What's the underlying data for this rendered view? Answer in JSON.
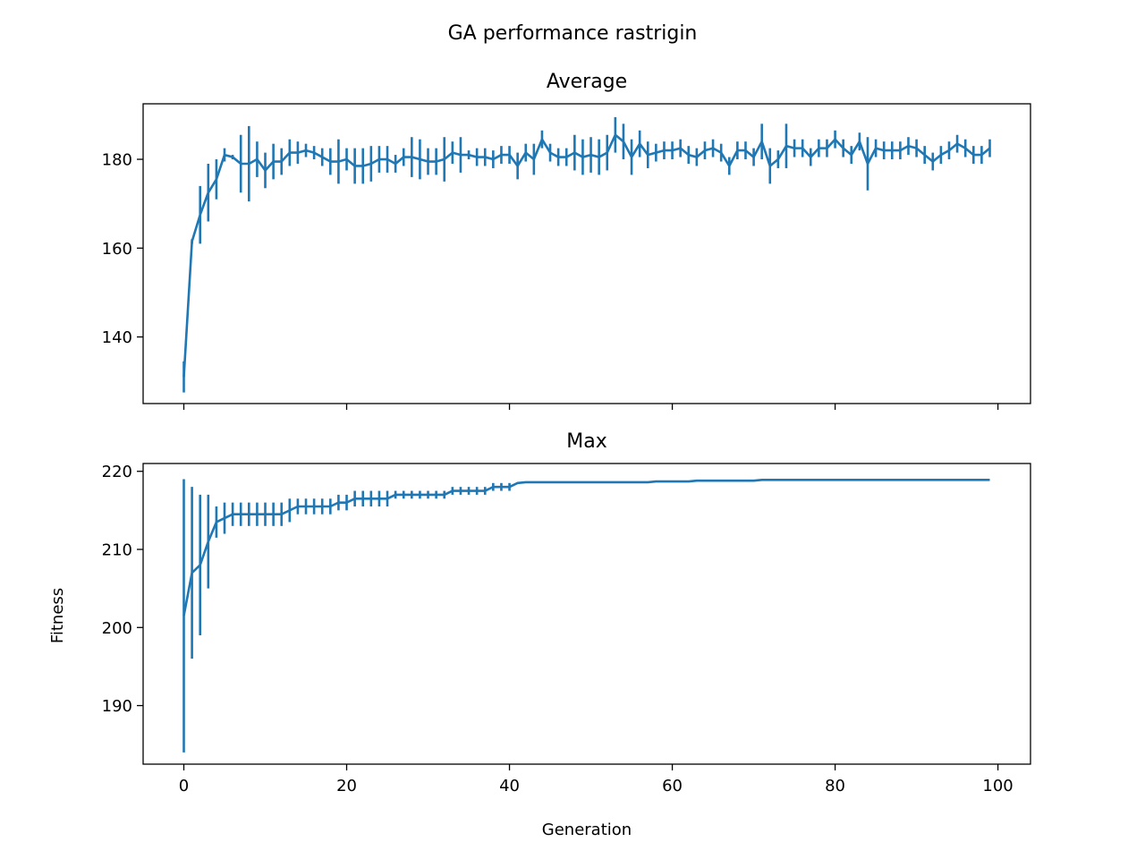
{
  "chart_data": {
    "type": "line",
    "title": "GA performance rastrigin",
    "xlabel": "Generation",
    "ylabel": "Fitness",
    "color": "#1f77b4",
    "xlim": [
      -5,
      104
    ],
    "xticks": [
      0,
      20,
      40,
      60,
      80,
      100
    ],
    "x": [
      0,
      1,
      2,
      3,
      4,
      5,
      6,
      7,
      8,
      9,
      10,
      11,
      12,
      13,
      14,
      15,
      16,
      17,
      18,
      19,
      20,
      21,
      22,
      23,
      24,
      25,
      26,
      27,
      28,
      29,
      30,
      31,
      32,
      33,
      34,
      35,
      36,
      37,
      38,
      39,
      40,
      41,
      42,
      43,
      44,
      45,
      46,
      47,
      48,
      49,
      50,
      51,
      52,
      53,
      54,
      55,
      56,
      57,
      58,
      59,
      60,
      61,
      62,
      63,
      64,
      65,
      66,
      67,
      68,
      69,
      70,
      71,
      72,
      73,
      74,
      75,
      76,
      77,
      78,
      79,
      80,
      81,
      82,
      83,
      84,
      85,
      86,
      87,
      88,
      89,
      90,
      91,
      92,
      93,
      94,
      95,
      96,
      97,
      98,
      99
    ],
    "panels": [
      {
        "title": "Average",
        "ylim": [
          125,
          192.5
        ],
        "yticks": [
          140,
          160,
          180
        ],
        "values": [
          131,
          161.5,
          167.5,
          172.5,
          175.5,
          181,
          180.5,
          179,
          179,
          180,
          177.5,
          179.5,
          179.5,
          181.5,
          181.5,
          182,
          181.5,
          180.5,
          179.5,
          179.5,
          180,
          178.5,
          178.5,
          179,
          180,
          180,
          179,
          180.5,
          180.5,
          180,
          179.5,
          179.5,
          180,
          181.5,
          181,
          181,
          180.5,
          180.5,
          180,
          181,
          181,
          178.5,
          181.5,
          180,
          184.5,
          181.5,
          180.5,
          180.5,
          181.5,
          180.5,
          181,
          180.5,
          181.5,
          185.5,
          184,
          180.5,
          183.5,
          181,
          181.5,
          182,
          182,
          182.5,
          181,
          180.5,
          182,
          182.5,
          181.5,
          178.5,
          182,
          182,
          180.5,
          184,
          178.5,
          180,
          183,
          182.5,
          182.5,
          180.5,
          182.5,
          182.5,
          184.5,
          182.5,
          181,
          184,
          179,
          182.5,
          182,
          182,
          182,
          183,
          182.5,
          181,
          179.5,
          181,
          182,
          183.5,
          182.5,
          181,
          181,
          182.5
        ],
        "errors": [
          3.5,
          0.5,
          6.5,
          6.5,
          4.5,
          1.5,
          0.5,
          6.5,
          8.5,
          4,
          4,
          4,
          3,
          3,
          2.5,
          1.5,
          1.5,
          2,
          3,
          5,
          2.5,
          4,
          4,
          4,
          3,
          3,
          2,
          2,
          4.5,
          4.5,
          3,
          3,
          5,
          2.5,
          4,
          1,
          2,
          2,
          2,
          2,
          2,
          3,
          2,
          3.5,
          2,
          2,
          2,
          2,
          4,
          4,
          4,
          4,
          4,
          4,
          4,
          4,
          3,
          3,
          2,
          2,
          2,
          2,
          2,
          2,
          2,
          2,
          2,
          2,
          2,
          2,
          2,
          4,
          4,
          2,
          5,
          2,
          2,
          2,
          2,
          2,
          2,
          2,
          2,
          2,
          6,
          2,
          2,
          2,
          2,
          2,
          2,
          2,
          2,
          2,
          2,
          2,
          2,
          2,
          2,
          2
        ]
      },
      {
        "title": "Max",
        "ylim": [
          182.5,
          221
        ],
        "yticks": [
          190,
          200,
          210,
          220
        ],
        "values": [
          201.5,
          207,
          208,
          211,
          213.5,
          214,
          214.5,
          214.5,
          214.5,
          214.5,
          214.5,
          214.5,
          214.5,
          215,
          215.5,
          215.5,
          215.5,
          215.5,
          215.5,
          216,
          216,
          216.5,
          216.5,
          216.5,
          216.5,
          216.5,
          217,
          217,
          217,
          217,
          217,
          217,
          217,
          217.5,
          217.5,
          217.5,
          217.5,
          217.5,
          218,
          218,
          218,
          218.5,
          218.6,
          218.6,
          218.6,
          218.6,
          218.6,
          218.6,
          218.6,
          218.6,
          218.6,
          218.6,
          218.6,
          218.6,
          218.6,
          218.6,
          218.6,
          218.6,
          218.7,
          218.7,
          218.7,
          218.7,
          218.7,
          218.8,
          218.8,
          218.8,
          218.8,
          218.8,
          218.8,
          218.8,
          218.8,
          218.9,
          218.9,
          218.9,
          218.9,
          218.9,
          218.9,
          218.9,
          218.9,
          218.9,
          218.9,
          218.9,
          218.9,
          218.9,
          218.9,
          218.9,
          218.9,
          218.9,
          218.9,
          218.9,
          218.9,
          218.9,
          218.9,
          218.9,
          218.9,
          218.9,
          218.9,
          218.9,
          218.9,
          218.9
        ],
        "errors": [
          17.5,
          11,
          9,
          6,
          2,
          2,
          1.5,
          1.5,
          1.5,
          1.5,
          1.5,
          1.5,
          1.5,
          1.5,
          1,
          1,
          1,
          1,
          1,
          1,
          1,
          1,
          1,
          1,
          1,
          1,
          0.5,
          0.5,
          0.5,
          0.5,
          0.5,
          0.5,
          0.5,
          0.5,
          0.5,
          0.5,
          0.5,
          0.5,
          0.5,
          0.5,
          0.5,
          0,
          0,
          0,
          0,
          0,
          0,
          0,
          0,
          0,
          0,
          0,
          0,
          0,
          0,
          0,
          0,
          0,
          0,
          0,
          0,
          0,
          0,
          0,
          0,
          0,
          0,
          0,
          0,
          0,
          0,
          0,
          0,
          0,
          0,
          0,
          0,
          0,
          0,
          0,
          0,
          0,
          0,
          0,
          0,
          0,
          0,
          0,
          0,
          0,
          0,
          0,
          0,
          0,
          0,
          0,
          0,
          0,
          0,
          0
        ]
      }
    ]
  }
}
